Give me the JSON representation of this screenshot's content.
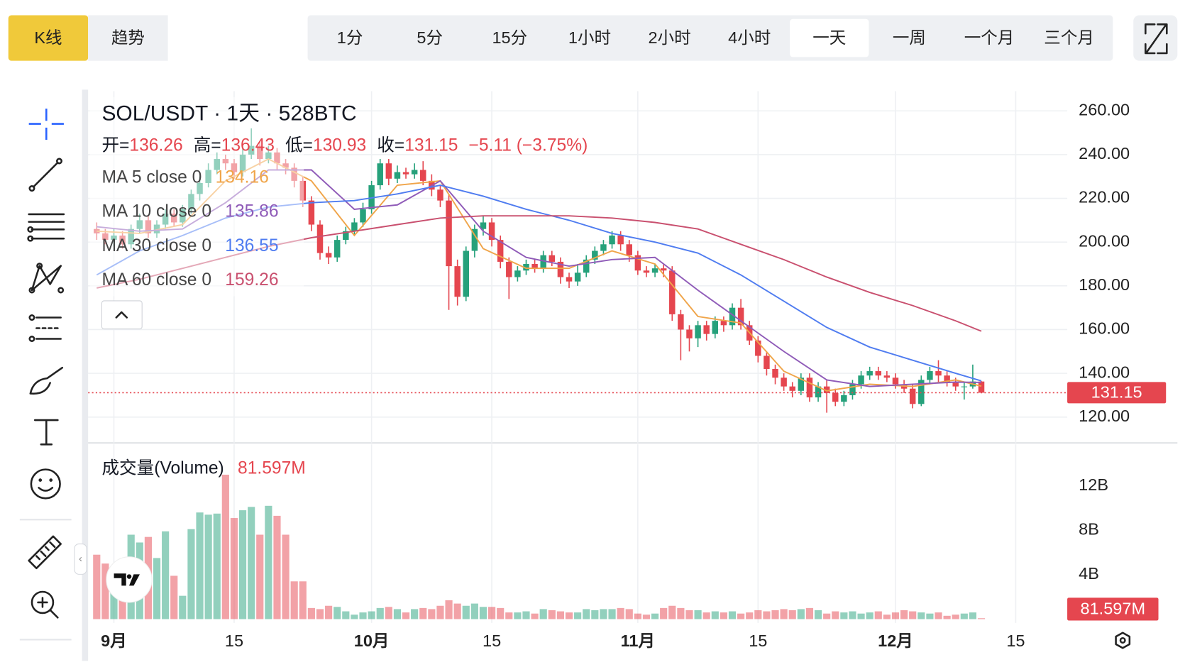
{
  "toolbar": {
    "chart_types": [
      "K线",
      "趋势"
    ],
    "active_chart_type": "K线",
    "intervals": [
      "1分",
      "5分",
      "15分",
      "1小时",
      "2小时",
      "4小时",
      "一天",
      "一周",
      "一个月",
      "三个月"
    ],
    "active_interval": "一天"
  },
  "chart_data": [
    {
      "type": "candlestick",
      "title": "SOL/USDT · 1天 · 528BTC",
      "ohlc_labels": [
        "开=",
        "高=",
        "低=",
        "收="
      ],
      "change_label": "−5.11 (−3.75%)",
      "up_color": "#26a17b",
      "down_color": "#e5464f",
      "grid": true,
      "xlim": [
        "08-29",
        "12-21"
      ],
      "xticks": [
        {
          "value": "09-01",
          "label": "9月"
        },
        {
          "value": "09-15",
          "label": "15"
        },
        {
          "value": "10-01",
          "label": "10月"
        },
        {
          "value": "10-15",
          "label": "15"
        },
        {
          "value": "11-01",
          "label": "11月"
        },
        {
          "value": "11-15",
          "label": "15"
        },
        {
          "value": "12-01",
          "label": "12月"
        },
        {
          "value": "12-15",
          "label": "15"
        }
      ],
      "ylim": [
        108.2,
        269
      ],
      "yticks": [
        {
          "value": 120,
          "label": "120.00"
        },
        {
          "value": 140,
          "label": "140.00"
        },
        {
          "value": 160,
          "label": "160.00"
        },
        {
          "value": 180,
          "label": "180.00"
        },
        {
          "value": 200,
          "label": "200.00"
        },
        {
          "value": 220,
          "label": "220.00"
        },
        {
          "value": 240,
          "label": "240.00"
        },
        {
          "value": 260,
          "label": "260.00"
        }
      ],
      "x": [
        "08-30",
        "08-31",
        "09-01",
        "09-02",
        "09-03",
        "09-04",
        "09-05",
        "09-06",
        "09-07",
        "09-08",
        "09-09",
        "09-10",
        "09-11",
        "09-12",
        "09-13",
        "09-14",
        "09-15",
        "09-16",
        "09-17",
        "09-18",
        "09-19",
        "09-20",
        "09-21",
        "09-22",
        "09-23",
        "09-24",
        "09-25",
        "09-26",
        "09-27",
        "09-28",
        "09-29",
        "09-30",
        "10-01",
        "10-02",
        "10-03",
        "10-04",
        "10-05",
        "10-06",
        "10-07",
        "10-08",
        "10-09",
        "10-10",
        "10-11",
        "10-12",
        "10-13",
        "10-14",
        "10-15",
        "10-16",
        "10-17",
        "10-18",
        "10-19",
        "10-20",
        "10-21",
        "10-22",
        "10-23",
        "10-24",
        "10-25",
        "10-26",
        "10-27",
        "10-28",
        "10-29",
        "10-30",
        "10-31",
        "11-01",
        "11-02",
        "11-03",
        "11-04",
        "11-05",
        "11-06",
        "11-07",
        "11-08",
        "11-09",
        "11-10",
        "11-11",
        "11-12",
        "11-13",
        "11-14",
        "11-15",
        "11-16",
        "11-17",
        "11-18",
        "11-19",
        "11-20",
        "11-21",
        "11-22",
        "11-23",
        "11-24",
        "11-25",
        "11-26",
        "11-27",
        "11-28",
        "11-29",
        "11-30",
        "12-01",
        "12-02",
        "12-03",
        "12-04",
        "12-05",
        "12-06",
        "12-07",
        "12-08",
        "12-09",
        "12-10",
        "12-11"
      ],
      "open": [
        206,
        204,
        201,
        203,
        199,
        206,
        210,
        204,
        208,
        213,
        209,
        215,
        222,
        227,
        233,
        238,
        236,
        232,
        240,
        244,
        238,
        241,
        236,
        234,
        228,
        219,
        208,
        195,
        193,
        201,
        205,
        209,
        215,
        226,
        236,
        229,
        232,
        231,
        233,
        228,
        224,
        219,
        189,
        175,
        196,
        206,
        209,
        201,
        191,
        184,
        187,
        190,
        188,
        194,
        191,
        184,
        182,
        186,
        192,
        196,
        199,
        203,
        199,
        194,
        187,
        186,
        188,
        187,
        167,
        160,
        156,
        162,
        158,
        164,
        162,
        170,
        162,
        155,
        148,
        142,
        138,
        134,
        132,
        138,
        129,
        134,
        131,
        127,
        130,
        135,
        139,
        141,
        139,
        138,
        135,
        133,
        126,
        137,
        141,
        139,
        136,
        134,
        134,
        136.26
      ],
      "high": [
        209,
        206,
        206,
        205,
        208,
        213,
        212,
        210,
        215,
        215,
        217,
        224,
        230,
        236,
        241,
        240,
        238,
        243,
        252,
        246,
        244,
        243,
        238,
        236,
        230,
        221,
        210,
        198,
        203,
        207,
        211,
        218,
        228,
        238,
        238,
        235,
        234,
        236,
        237,
        231,
        226,
        222,
        192,
        198,
        208,
        212,
        211,
        203,
        193,
        189,
        192,
        192,
        196,
        196,
        193,
        186,
        190,
        194,
        198,
        201,
        205,
        205,
        201,
        196,
        189,
        190,
        190,
        189,
        169,
        162,
        164,
        164,
        166,
        166,
        172,
        174,
        164,
        157,
        150,
        144,
        140,
        136,
        140,
        140,
        136,
        137,
        133,
        132,
        137,
        141,
        143,
        143,
        141,
        140,
        137,
        135,
        139,
        143,
        146,
        141,
        138,
        136,
        144,
        136.43
      ],
      "low": [
        201,
        199,
        198,
        197,
        197,
        204,
        202,
        202,
        206,
        207,
        207,
        213,
        219,
        225,
        231,
        233,
        229,
        230,
        238,
        235,
        236,
        233,
        231,
        225,
        216,
        205,
        192,
        190,
        191,
        199,
        203,
        207,
        213,
        224,
        226,
        227,
        229,
        229,
        226,
        221,
        216,
        169,
        171,
        173,
        193,
        203,
        198,
        188,
        174,
        182,
        185,
        186,
        186,
        189,
        181,
        179,
        180,
        184,
        190,
        194,
        197,
        196,
        191,
        185,
        184,
        184,
        184,
        164,
        146,
        150,
        152,
        155,
        156,
        159,
        160,
        160,
        153,
        145,
        139,
        135,
        132,
        129,
        130,
        127,
        127,
        122,
        125,
        125,
        128,
        133,
        137,
        137,
        136,
        133,
        131,
        124,
        125,
        135,
        136,
        134,
        132,
        128,
        133,
        130.93
      ],
      "close": [
        204,
        201,
        203,
        199,
        206,
        210,
        204,
        208,
        213,
        209,
        215,
        222,
        227,
        233,
        238,
        236,
        232,
        240,
        244,
        238,
        241,
        236,
        234,
        228,
        219,
        208,
        195,
        193,
        201,
        205,
        209,
        215,
        226,
        236,
        229,
        232,
        231,
        233,
        228,
        224,
        219,
        189,
        175,
        196,
        206,
        209,
        201,
        191,
        184,
        187,
        190,
        188,
        194,
        191,
        184,
        182,
        186,
        192,
        196,
        199,
        203,
        199,
        194,
        187,
        186,
        188,
        187,
        167,
        160,
        156,
        162,
        158,
        164,
        162,
        170,
        162,
        155,
        148,
        142,
        138,
        134,
        132,
        138,
        129,
        134,
        131,
        127,
        130,
        135,
        139,
        141,
        139,
        138,
        135,
        133,
        126,
        137,
        141,
        139,
        136,
        134,
        134,
        136.26,
        131.15
      ],
      "series": [
        {
          "name": "MA 5 close 0",
          "color": "#f0a54a",
          "x": [
            "08-30",
            "09-04",
            "09-09",
            "09-14",
            "09-19",
            "09-24",
            "09-29",
            "10-04",
            "10-09",
            "10-14",
            "10-19",
            "10-24",
            "10-29",
            "11-03",
            "11-08",
            "11-13",
            "11-18",
            "11-23",
            "11-28",
            "12-03",
            "12-08",
            "12-11"
          ],
          "values": [
            205,
            204,
            208,
            228,
            238,
            228,
            203,
            226,
            228,
            197,
            188,
            188,
            196,
            190,
            166,
            163,
            141,
            132,
            135,
            134,
            137,
            134.16
          ]
        },
        {
          "name": "MA 10 close 0",
          "color": "#8f5bb8",
          "x": [
            "08-30",
            "09-04",
            "09-09",
            "09-14",
            "09-19",
            "09-24",
            "09-29",
            "10-04",
            "10-09",
            "10-14",
            "10-19",
            "10-24",
            "10-29",
            "11-03",
            "11-08",
            "11-13",
            "11-18",
            "11-23",
            "11-28",
            "12-03",
            "12-08",
            "12-11"
          ],
          "values": [
            207,
            205,
            206,
            218,
            233,
            233,
            215,
            217,
            228,
            205,
            193,
            189,
            192,
            193,
            178,
            164,
            150,
            137,
            134,
            135,
            136,
            135.86
          ]
        },
        {
          "name": "MA 30 close 0",
          "color": "#4f7cf0",
          "x": [
            "08-30",
            "09-04",
            "09-09",
            "09-14",
            "09-19",
            "09-24",
            "09-29",
            "10-04",
            "10-09",
            "10-14",
            "10-19",
            "10-24",
            "10-29",
            "11-03",
            "11-08",
            "11-13",
            "11-18",
            "11-23",
            "11-28",
            "12-03",
            "12-08",
            "12-11"
          ],
          "values": [
            185,
            196,
            203,
            211,
            216,
            218,
            219,
            222,
            226,
            221,
            215,
            210,
            204,
            200,
            195,
            185,
            173,
            161,
            152,
            146,
            140,
            136.55
          ]
        },
        {
          "name": "MA 60 close 0",
          "color": "#c9506f",
          "x": [
            "08-30",
            "09-04",
            "09-09",
            "09-14",
            "09-19",
            "09-24",
            "09-29",
            "10-04",
            "10-09",
            "10-14",
            "10-19",
            "10-24",
            "10-29",
            "11-03",
            "11-08",
            "11-13",
            "11-18",
            "11-23",
            "11-28",
            "12-03",
            "12-08",
            "12-11"
          ],
          "values": [
            179,
            183,
            188,
            193,
            198,
            202,
            205,
            208,
            211,
            212,
            212,
            212,
            211,
            209,
            206,
            199,
            192,
            184,
            177,
            171,
            164,
            159.26
          ]
        }
      ]
    },
    {
      "type": "bar",
      "title": "成交量(Volume)",
      "latest_label": "81.597M",
      "grid": false,
      "ylim": [
        0,
        14.36
      ],
      "yticks": [
        {
          "value": 4,
          "label": "4B"
        },
        {
          "value": 8,
          "label": "8B"
        },
        {
          "value": 12,
          "label": "12B"
        }
      ],
      "values": [
        5.8,
        5.0,
        3.0,
        4.9,
        7.6,
        6.9,
        7.4,
        5.5,
        7.9,
        3.9,
        2.1,
        8.1,
        9.6,
        9.4,
        9.5,
        13.0,
        9.1,
        9.8,
        10.1,
        7.6,
        10.2,
        9.3,
        7.6,
        3.4,
        3.4,
        1.0,
        0.9,
        1.2,
        1.1,
        0.7,
        0.4,
        0.6,
        0.7,
        1.0,
        1.1,
        0.9,
        0.6,
        0.9,
        1.0,
        0.9,
        1.2,
        1.7,
        1.4,
        1.2,
        1.4,
        1.1,
        1.1,
        1.0,
        0.6,
        0.6,
        0.7,
        0.5,
        0.9,
        0.8,
        0.7,
        0.6,
        0.6,
        0.9,
        0.8,
        0.9,
        0.9,
        1.0,
        0.9,
        0.5,
        0.4,
        0.5,
        1.0,
        1.2,
        1.0,
        0.8,
        0.8,
        0.6,
        0.7,
        0.6,
        0.7,
        0.5,
        0.6,
        0.8,
        0.7,
        0.8,
        0.9,
        0.8,
        0.9,
        1.0,
        0.8,
        0.5,
        0.7,
        0.6,
        0.7,
        0.5,
        0.6,
        0.7,
        0.4,
        0.6,
        0.8,
        0.7,
        0.6,
        0.5,
        0.6,
        0.3,
        0.4,
        0.5,
        0.6,
        0.081597
      ]
    }
  ]
}
